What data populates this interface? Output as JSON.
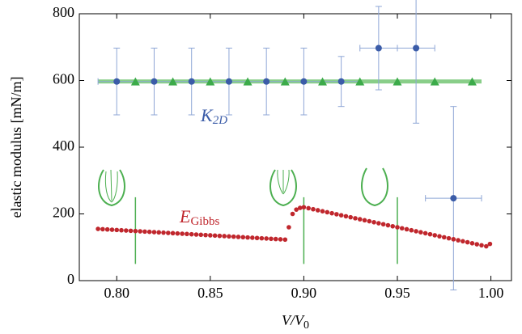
{
  "chart_data": {
    "type": "scatter",
    "ylabel": "elastic modulus [mN/m]",
    "xlabel": {
      "text": "V/V",
      "sub": "0"
    },
    "xlim": [
      0.78,
      1.011
    ],
    "ylim": [
      0,
      800
    ],
    "xticks": [
      {
        "value": 0.8,
        "label": "0.80"
      },
      {
        "value": 0.85,
        "label": "0.85"
      },
      {
        "value": 0.9,
        "label": "0.90"
      },
      {
        "value": 0.95,
        "label": "0.95"
      },
      {
        "value": 1.0,
        "label": "1.00"
      }
    ],
    "yticks": [
      0,
      200,
      400,
      600,
      800
    ],
    "annotations": [
      {
        "text": "K",
        "sub": "2D",
        "color": "#3b5ca8"
      },
      {
        "text": "E",
        "sub": "Gibbs",
        "color": "#c0272d"
      }
    ],
    "hline": {
      "value": 597,
      "x": [
        0.79,
        0.995
      ],
      "color": "#6cc26c"
    },
    "vlines": {
      "x": [
        0.81,
        0.9,
        0.95
      ],
      "range": [
        50,
        250
      ],
      "color": "#4caf50"
    },
    "series": [
      {
        "marker": "circle",
        "color": "#3b5ca8",
        "x": [
          0.8,
          0.82,
          0.84,
          0.86,
          0.88,
          0.9,
          0.92,
          0.94,
          0.96,
          0.98
        ],
        "values": [
          597,
          597,
          597,
          597,
          597,
          597,
          597,
          697,
          697,
          247
        ],
        "yerr": [
          100,
          100,
          100,
          100,
          100,
          100,
          75,
          125,
          225,
          275
        ],
        "xerr": [
          0.01,
          0.01,
          0.01,
          0.01,
          0.01,
          0.01,
          0.01,
          0.01,
          0.01,
          0.015
        ]
      },
      {
        "marker": "triangle",
        "color": "#3cab4a",
        "x": [
          0.81,
          0.83,
          0.85,
          0.87,
          0.89,
          0.91,
          0.93,
          0.95,
          0.97,
          0.99
        ],
        "values": [
          595,
          595,
          595,
          595,
          595,
          595,
          595,
          595,
          595,
          595
        ]
      },
      {
        "marker": "dot",
        "color": "#c0272d",
        "x": [
          0.79,
          0.7925,
          0.795,
          0.7975,
          0.8,
          0.8025,
          0.805,
          0.8075,
          0.81,
          0.8125,
          0.815,
          0.8175,
          0.82,
          0.8225,
          0.825,
          0.8275,
          0.83,
          0.8325,
          0.835,
          0.8375,
          0.84,
          0.8425,
          0.845,
          0.8475,
          0.85,
          0.8525,
          0.855,
          0.8575,
          0.86,
          0.8625,
          0.865,
          0.8675,
          0.87,
          0.8725,
          0.875,
          0.8775,
          0.88,
          0.8825,
          0.885,
          0.8875,
          0.89,
          0.892,
          0.894,
          0.896,
          0.898,
          0.9,
          0.9025,
          0.905,
          0.9075,
          0.91,
          0.9125,
          0.915,
          0.9175,
          0.92,
          0.9225,
          0.925,
          0.9275,
          0.93,
          0.9325,
          0.935,
          0.9375,
          0.94,
          0.9425,
          0.945,
          0.9475,
          0.95,
          0.9525,
          0.955,
          0.9575,
          0.96,
          0.9625,
          0.965,
          0.9675,
          0.97,
          0.9725,
          0.975,
          0.9775,
          0.98,
          0.9825,
          0.985,
          0.9875,
          0.99,
          0.9925,
          0.995,
          0.9975,
          0.9995
        ],
        "values": [
          155,
          154.2,
          153.4,
          152.6,
          151.8,
          151,
          150.2,
          149.4,
          148.6,
          147.8,
          147,
          146.2,
          145.4,
          144.6,
          143.8,
          143,
          142.2,
          141.4,
          140.6,
          139.8,
          139,
          138.2,
          137.4,
          136.6,
          135.8,
          135,
          134.2,
          133.4,
          132.6,
          131.8,
          131,
          130.2,
          129.4,
          128.6,
          127.8,
          127,
          126.2,
          125.4,
          124.6,
          123.8,
          123,
          160,
          200,
          213,
          218,
          220,
          217,
          214,
          211,
          208,
          205,
          202,
          199,
          196,
          193,
          190,
          187,
          184,
          181,
          178,
          175,
          172,
          169,
          166,
          163,
          160,
          157,
          154,
          151,
          148,
          145,
          142,
          139,
          136,
          133,
          130,
          127,
          124,
          121,
          118,
          115,
          112,
          109,
          106,
          103,
          110
        ]
      }
    ]
  }
}
